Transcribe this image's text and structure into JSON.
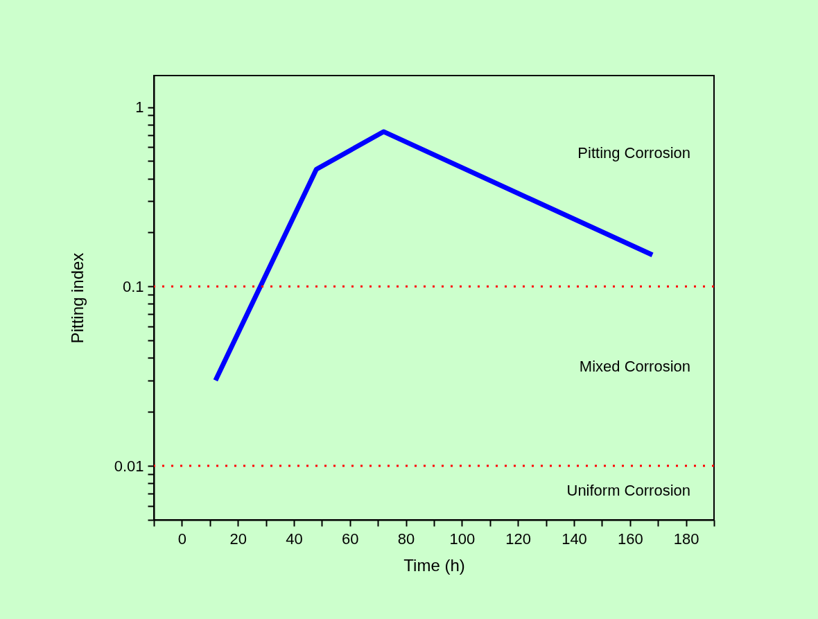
{
  "chart_data": {
    "type": "line",
    "xlabel": "Time (h)",
    "ylabel": "Pitting index",
    "x": [
      12,
      48,
      72,
      168
    ],
    "series": [
      {
        "color": "#0000ff",
        "values": [
          0.03,
          0.45,
          0.73,
          0.15
        ]
      }
    ],
    "log": "y",
    "xlim": [
      -10,
      190
    ],
    "ylim": [
      0.005,
      1.5
    ],
    "xticks": [
      {
        "value": -10,
        "label": null
      },
      0,
      {
        "value": 10,
        "label": null
      },
      20,
      {
        "value": 30,
        "label": null
      },
      40,
      {
        "value": 50,
        "label": null
      },
      60,
      {
        "value": 70,
        "label": null
      },
      80,
      {
        "value": 90,
        "label": null
      },
      100,
      {
        "value": 110,
        "label": null
      },
      120,
      {
        "value": 130,
        "label": null
      },
      140,
      {
        "value": 150,
        "label": null
      },
      160,
      {
        "value": 170,
        "label": null
      },
      180,
      {
        "value": 190,
        "label": null
      }
    ],
    "yticks": [
      {
        "value": 0.005,
        "label": null
      },
      {
        "value": 0.006,
        "label": null
      },
      {
        "value": 0.007,
        "label": null
      },
      {
        "value": 0.008,
        "label": null
      },
      {
        "value": 0.009,
        "label": null
      },
      0.01,
      {
        "value": 0.02,
        "label": null
      },
      {
        "value": 0.03,
        "label": null
      },
      {
        "value": 0.04,
        "label": null
      },
      {
        "value": 0.05,
        "label": null
      },
      {
        "value": 0.06,
        "label": null
      },
      {
        "value": 0.07,
        "label": null
      },
      {
        "value": 0.08,
        "label": null
      },
      {
        "value": 0.09,
        "label": null
      },
      0.1,
      {
        "value": 0.2,
        "label": null
      },
      {
        "value": 0.3,
        "label": null
      },
      {
        "value": 0.4,
        "label": null
      },
      {
        "value": 0.5,
        "label": null
      },
      {
        "value": 0.6,
        "label": null
      },
      {
        "value": 0.7,
        "label": null
      },
      {
        "value": 0.8,
        "label": null
      },
      {
        "value": 0.9,
        "label": null
      },
      1
    ],
    "ref_lines": [
      {
        "axis": "y",
        "value": 0.1,
        "color": "#ff0000",
        "line_style": "dotted"
      },
      {
        "axis": "y",
        "value": 0.01,
        "color": "#ff0000",
        "line_style": "dotted"
      }
    ],
    "annotations": [
      "Pitting Corrosion",
      "Mixed Corrosion",
      "Uniform Corrosion"
    ],
    "grid": false,
    "marker": "none",
    "line_style": "solid"
  }
}
